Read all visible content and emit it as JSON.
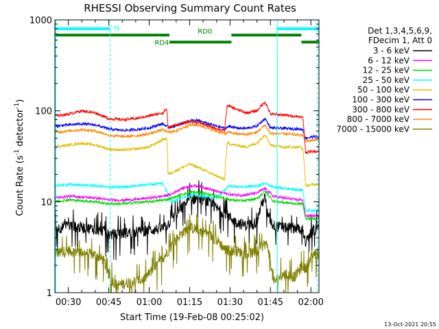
{
  "chart_data": {
    "type": "line",
    "title": "RHESSI Observing Summary Count Rates",
    "xlabel": "Start Time (19-Feb-08 00:25:02)",
    "ylabel_main": "Count Rate (s",
    "ylabel_sup1": "-1",
    "ylabel_mid": " detector",
    "ylabel_sup2": "-1",
    "ylabel_end": ")",
    "yscale": "log",
    "ylim": [
      1,
      1000
    ],
    "xlim_minutes": [
      25.0,
      123.0
    ],
    "x_ticks": [
      {
        "minute": 30,
        "label": "00:30"
      },
      {
        "minute": 45,
        "label": "00:45"
      },
      {
        "minute": 60,
        "label": "01:00"
      },
      {
        "minute": 75,
        "label": "01:15"
      },
      {
        "minute": 90,
        "label": "01:30"
      },
      {
        "minute": 105,
        "label": "01:45"
      },
      {
        "minute": 120,
        "label": "02:00"
      }
    ],
    "y_ticks": [
      {
        "value": 1,
        "label": "1"
      },
      {
        "value": 10,
        "label": "10"
      },
      {
        "value": 100,
        "label": "100"
      },
      {
        "value": 1000,
        "label": "1000"
      }
    ],
    "legend_header": [
      "Det 1,3,4,5,6,9,",
      "FDecim 1, Att 0"
    ],
    "legend_position": "right",
    "series": [
      {
        "name": "3 - 6 keV",
        "color": "#000000",
        "x": [
          25,
          30,
          40,
          43,
          45,
          48,
          52,
          58,
          63,
          66,
          68,
          72,
          75,
          78,
          82,
          85,
          88,
          92,
          96,
          100,
          102,
          103,
          104,
          106,
          110,
          114,
          117,
          118,
          121,
          123
        ],
        "y": [
          5,
          5.5,
          5,
          4.8,
          4.4,
          4.4,
          4.6,
          4.8,
          5.0,
          5.2,
          6.2,
          8.5,
          10.5,
          11,
          10,
          8.5,
          7.5,
          6.0,
          5.5,
          6.0,
          10,
          11,
          7,
          5.5,
          5.2,
          5.2,
          5.0,
          3.5,
          5.0,
          5.0
        ]
      },
      {
        "name": "6 - 12 keV",
        "color": "#ff00ff",
        "x": [
          25,
          30,
          40,
          45,
          50,
          55,
          60,
          65,
          68,
          72,
          76,
          80,
          85,
          90,
          95,
          100,
          103,
          106,
          110,
          115,
          117,
          118,
          121,
          123
        ],
        "y": [
          11,
          11.5,
          11,
          10.5,
          10.4,
          10.6,
          11,
          11.5,
          12,
          14,
          15,
          14.5,
          13,
          12,
          11.8,
          12.5,
          14,
          11.5,
          11,
          10.5,
          10.5,
          7,
          7,
          7
        ]
      },
      {
        "name": "12 - 25 keV",
        "color": "#00dd00",
        "x": [
          25,
          30,
          40,
          45,
          50,
          55,
          60,
          65,
          68,
          72,
          76,
          80,
          85,
          90,
          95,
          100,
          103,
          106,
          110,
          115,
          117,
          118,
          121,
          123
        ],
        "y": [
          10,
          10.5,
          10,
          9.5,
          9.5,
          9.8,
          10,
          10.4,
          10.8,
          12,
          12.8,
          12.5,
          11.5,
          10.5,
          10.2,
          10.8,
          13,
          10.2,
          9.8,
          9.5,
          9.5,
          6.5,
          6.5,
          6.5
        ]
      },
      {
        "name": "25 - 50 keV",
        "color": "#00ffff",
        "x": [
          25,
          30,
          40,
          45,
          50,
          55,
          60,
          65,
          68,
          72,
          76,
          80,
          85,
          90,
          95,
          100,
          103,
          106,
          110,
          115,
          117,
          118,
          121,
          123
        ],
        "y": [
          15,
          15.5,
          15,
          14.5,
          14.5,
          15,
          15.5,
          16,
          10,
          11,
          12,
          11.5,
          11,
          15,
          14.5,
          15,
          16,
          14.5,
          14,
          13.5,
          13.5,
          8,
          8,
          8
        ]
      },
      {
        "name": "50 - 100 keV",
        "color": "#e0c000",
        "x": [
          25,
          30,
          35,
          40,
          45,
          50,
          55,
          60,
          65,
          66.5,
          67,
          70,
          75,
          78,
          82,
          88,
          89,
          92,
          96,
          100,
          103,
          105,
          110,
          116,
          117,
          118,
          121,
          123
        ],
        "y": [
          40,
          42,
          44,
          42,
          38,
          37,
          38,
          40,
          48,
          50,
          20,
          22,
          26,
          24,
          21,
          17.5,
          44,
          42,
          40,
          44,
          55,
          42,
          40,
          40,
          38,
          15,
          15.5,
          15.5
        ]
      },
      {
        "name": "100 - 300 keV",
        "color": "#0000ff",
        "x": [
          25,
          30,
          35,
          40,
          45,
          50,
          55,
          60,
          65,
          67,
          70,
          75,
          78,
          82,
          88,
          90,
          92,
          96,
          100,
          103,
          105,
          110,
          116,
          117,
          118,
          121,
          123
        ],
        "y": [
          68,
          70,
          72,
          70,
          63,
          61,
          62,
          65,
          72,
          66,
          68,
          78,
          78,
          72,
          64,
          68,
          65,
          64,
          68,
          82,
          65,
          64,
          63,
          62,
          50,
          52,
          52
        ]
      },
      {
        "name": "300 - 800 keV",
        "color": "#ff0000",
        "x": [
          25,
          30,
          35,
          40,
          45,
          50,
          55,
          60,
          65,
          66.5,
          67,
          70,
          75,
          78,
          82,
          88,
          89,
          92,
          96,
          100,
          103,
          105,
          110,
          116,
          117,
          118,
          121,
          123
        ],
        "y": [
          88,
          92,
          100,
          95,
          82,
          80,
          82,
          88,
          95,
          105,
          65,
          70,
          76,
          75,
          68,
          60,
          115,
          105,
          95,
          100,
          125,
          92,
          90,
          86,
          84,
          35,
          36,
          36
        ]
      },
      {
        "name": "800 - 7000 keV",
        "color": "#ff8800",
        "x": [
          25,
          30,
          35,
          40,
          45,
          50,
          55,
          60,
          65,
          67,
          70,
          75,
          78,
          82,
          88,
          90,
          92,
          96,
          100,
          103,
          105,
          110,
          116,
          117,
          118,
          121,
          123
        ],
        "y": [
          58,
          60,
          62,
          60,
          54,
          52,
          53,
          56,
          62,
          58,
          60,
          70,
          70,
          64,
          56,
          58,
          56,
          55,
          58,
          70,
          56,
          56,
          54,
          54,
          46,
          48,
          48
        ]
      },
      {
        "name": "7000 - 15000 keV",
        "color": "#808000",
        "x": [
          25,
          30,
          35,
          40,
          43,
          45,
          48,
          52,
          58,
          63,
          66,
          68,
          72,
          75,
          78,
          82,
          86,
          88,
          92,
          96,
          100,
          103,
          104,
          106,
          110,
          114,
          117,
          118,
          121,
          123
        ],
        "y": [
          2.7,
          2.9,
          2.8,
          2.6,
          2.3,
          1.5,
          1.2,
          1.3,
          1.4,
          2.0,
          2.6,
          3.2,
          4.5,
          5.2,
          5.0,
          4.4,
          3.6,
          3.0,
          2.9,
          2.7,
          2.8,
          3.5,
          3.2,
          1.3,
          1.6,
          1.5,
          2.0,
          1.8,
          2.7,
          2.7
        ]
      }
    ],
    "state_bars": [
      {
        "label": "N",
        "color": "#00ffff",
        "value": 800,
        "segments": [
          [
            25.0,
            45.5
          ],
          [
            107.5,
            123.0
          ]
        ]
      },
      {
        "label": "RD0",
        "color": "#008000",
        "value": 680,
        "segments": [
          [
            25.0,
            67.5
          ],
          [
            90.5,
            116.5
          ]
        ]
      },
      {
        "label": "RD4",
        "color": "#008000",
        "value": 570,
        "segments": [
          [
            67.5,
            90.5
          ],
          [
            116.5,
            123.0
          ]
        ]
      }
    ],
    "vlines_solid": [
      25.3,
      107.5
    ],
    "vlines_dashed": [
      45.5,
      122.5
    ],
    "footer_timestamp": "13-Oct-2021 20:55"
  }
}
